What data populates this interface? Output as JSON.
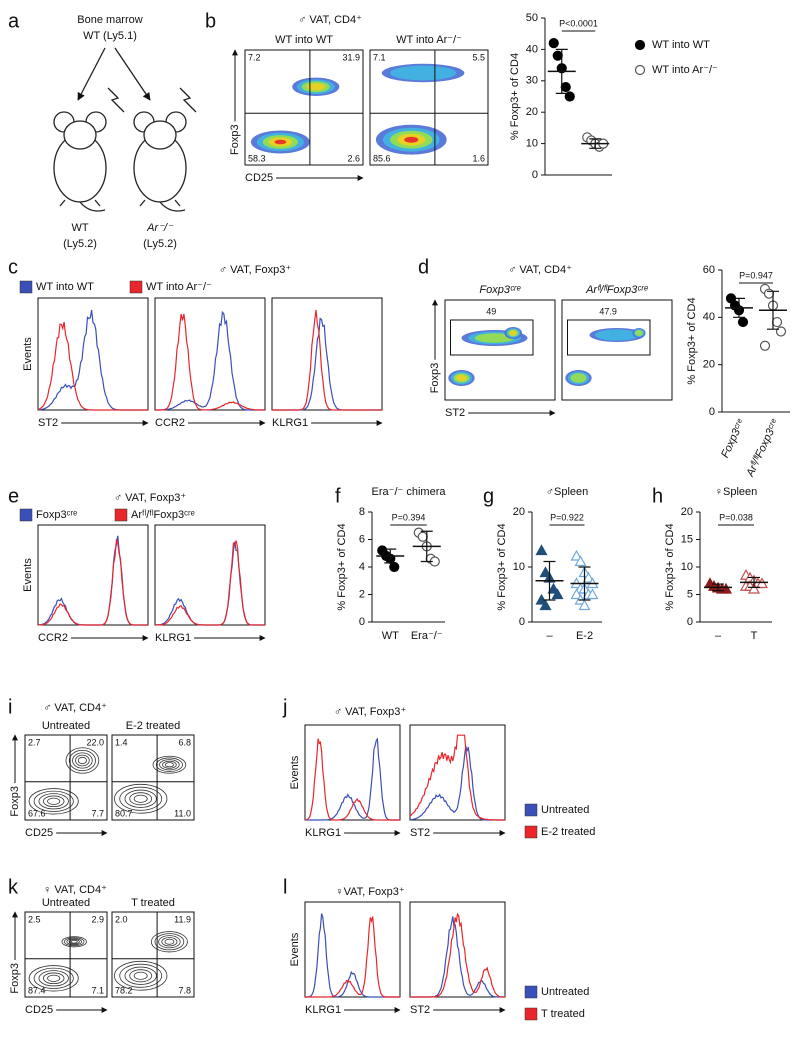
{
  "letters": [
    "a",
    "b",
    "c",
    "d",
    "e",
    "f",
    "g",
    "h",
    "i",
    "j",
    "k",
    "l"
  ],
  "a": {
    "title": "Bone marrow",
    "donor": "WT (Ly5.1)",
    "recipients": [
      {
        "genotype": "WT",
        "strain": "(Ly5.2)"
      },
      {
        "genotype": "Ar⁻/⁻",
        "strain": "(Ly5.2)"
      }
    ]
  },
  "b": {
    "header": "♂ VAT, CD4⁺",
    "y_axis": "Foxp3",
    "x_axis": "CD25",
    "plots": [
      {
        "title": "WT into WT",
        "quadrants": [
          "7.2",
          "31.9",
          "58.3",
          "2.6"
        ]
      },
      {
        "title": "WT into Ar⁻/⁻",
        "quadrants": [
          "7.1",
          "5.5",
          "85.6",
          "1.6"
        ]
      }
    ]
  },
  "c": {
    "header": "♂ VAT, Foxp3⁺",
    "legend": [
      {
        "name": "WT into WT",
        "color": "#3b4fb8"
      },
      {
        "name": "WT into Ar⁻/⁻",
        "color": "#e8262b"
      }
    ],
    "y_axis": "Events",
    "x_axes": [
      "ST2",
      "CCR2",
      "KLRG1"
    ]
  },
  "d": {
    "header": "♂ VAT, CD4⁺",
    "y_axis": "Foxp3",
    "x_axis": "ST2",
    "plots": [
      {
        "title": "Foxp3ᶜʳᵉ",
        "gate": "49"
      },
      {
        "title": "Arᶠˡ/ᶠˡFoxp3ᶜʳᵉ",
        "gate": "47.9"
      }
    ]
  },
  "e": {
    "header": "♂ VAT, Foxp3⁺",
    "legend": [
      {
        "name": "Foxp3ᶜʳᵉ",
        "color": "#3b4fb8"
      },
      {
        "name": "Arᶠˡ/ᶠˡFoxp3ᶜʳᵉ",
        "color": "#e8262b"
      }
    ],
    "y_axis": "Events",
    "x_axes": [
      "CCR2",
      "KLRG1"
    ]
  },
  "i": {
    "header": "♂ VAT, CD4⁺",
    "y_axis": "Foxp3",
    "x_axis": "CD25",
    "plots": [
      {
        "title": "Untreated",
        "quadrants": [
          "2.7",
          "22.0",
          "67.6",
          "7.7"
        ]
      },
      {
        "title": "E-2 treated",
        "quadrants": [
          "1.4",
          "6.8",
          "80.7",
          "11.0"
        ]
      }
    ]
  },
  "j": {
    "header": "♂ VAT, Foxp3⁺",
    "legend": [
      {
        "name": "Untreated",
        "color": "#3b4fb8"
      },
      {
        "name": "E-2 treated",
        "color": "#e8262b"
      }
    ],
    "y_axis": "Events",
    "x_axes": [
      "KLRG1",
      "ST2"
    ]
  },
  "k": {
    "header": "♀ VAT, CD4⁺",
    "y_axis": "Foxp3",
    "x_axis": "CD25",
    "plots": [
      {
        "title": "Untreated",
        "quadrants": [
          "2.5",
          "2.9",
          "87.4",
          "7.1"
        ]
      },
      {
        "title": "T treated",
        "quadrants": [
          "2.0",
          "11.9",
          "78.2",
          "7.8"
        ]
      }
    ]
  },
  "l": {
    "header": "♀VAT, Foxp3⁺",
    "legend": [
      {
        "name": "Untreated",
        "color": "#3b4fb8"
      },
      {
        "name": "T treated",
        "color": "#e8262b"
      }
    ],
    "y_axis": "Events",
    "x_axes": [
      "KLRG1",
      "ST2"
    ]
  },
  "chart_data": [
    {
      "type": "dot",
      "ylabel": "% Foxp3+ of CD4",
      "ylim": [
        0,
        50
      ],
      "yticks": [
        0,
        10,
        20,
        30,
        40,
        50
      ],
      "annotation": "P<0.0001",
      "legend": true,
      "series": [
        {
          "name": "WT into WT",
          "color": "#000000",
          "marker": "circle",
          "filled": true,
          "values": [
            42,
            38,
            34,
            28,
            25
          ],
          "mean": 33,
          "error": 7
        },
        {
          "name": "WT into Ar⁻/⁻",
          "color": "#555555",
          "marker": "circle",
          "filled": false,
          "values": [
            12,
            11,
            10,
            9,
            10
          ],
          "mean": 10,
          "error": 1.5
        }
      ]
    },
    {
      "type": "dot",
      "ylabel": "% Foxp3+ of CD4",
      "ylim": [
        0,
        60
      ],
      "yticks": [
        0,
        20,
        40,
        60
      ],
      "annotation": "P=0.947",
      "legend": false,
      "series": [
        {
          "name": "Foxp3ᶜʳᵉ",
          "color": "#000000",
          "marker": "circle",
          "filled": true,
          "values": [
            48,
            45,
            43,
            38
          ],
          "mean": 44,
          "error": 4
        },
        {
          "name": "Arᶠˡ/ᶠˡFoxp3ᶜʳᵉ",
          "color": "#555555",
          "marker": "circle",
          "filled": false,
          "values": [
            52,
            50,
            45,
            38,
            34,
            28
          ],
          "mean": 43,
          "error": 8
        }
      ]
    },
    {
      "type": "dot",
      "title": "Era⁻/⁻ chimera",
      "ylabel": "% Foxp3+ of CD4",
      "ylim": [
        0,
        8
      ],
      "yticks": [
        0,
        2,
        4,
        6,
        8
      ],
      "annotation": "P=0.394",
      "legend": false,
      "series": [
        {
          "name": "WT",
          "color": "#000000",
          "marker": "circle",
          "filled": true,
          "values": [
            5.2,
            4.8,
            4.6,
            4.0
          ],
          "mean": 4.8,
          "error": 0.5
        },
        {
          "name": "Era⁻/⁻",
          "color": "#555555",
          "marker": "circle",
          "filled": false,
          "values": [
            6.5,
            6.2,
            5.5,
            4.6,
            4.4
          ],
          "mean": 5.5,
          "error": 1.1
        }
      ]
    },
    {
      "type": "dot",
      "title": "♂Spleen",
      "ylabel": "% Foxp3+ of CD4",
      "ylim": [
        0,
        20
      ],
      "yticks": [
        0,
        10,
        20
      ],
      "annotation": "P=0.922",
      "legend": false,
      "series": [
        {
          "name": "–",
          "color": "#1f4e79",
          "marker": "triangle",
          "filled": true,
          "values": [
            13,
            9,
            8,
            6,
            5,
            4,
            3
          ],
          "mean": 7.5,
          "error": 3.5
        },
        {
          "name": "E-2",
          "color": "#6fa8dc",
          "marker": "triangle",
          "filled": false,
          "values": [
            12,
            11,
            9,
            8,
            7,
            7,
            6,
            6,
            5,
            5,
            5,
            4,
            3
          ],
          "mean": 7,
          "error": 3
        }
      ]
    },
    {
      "type": "dot",
      "title": "♀Spleen",
      "ylabel": "% Foxp3+ of CD4",
      "ylim": [
        0,
        20
      ],
      "yticks": [
        0,
        5,
        10,
        15,
        20
      ],
      "annotation": "P=0.038",
      "legend": false,
      "series": [
        {
          "name": "–",
          "color": "#8b1a1a",
          "marker": "triangle",
          "filled": true,
          "values": [
            7,
            6.5,
            6.2,
            6,
            6
          ],
          "mean": 6.3,
          "error": 0.6
        },
        {
          "name": "T",
          "color": "#c0504d",
          "marker": "triangle",
          "filled": false,
          "values": [
            8.5,
            8,
            7.5,
            7,
            7,
            6.5,
            6.5,
            6
          ],
          "mean": 7.2,
          "error": 0.9
        }
      ]
    }
  ]
}
